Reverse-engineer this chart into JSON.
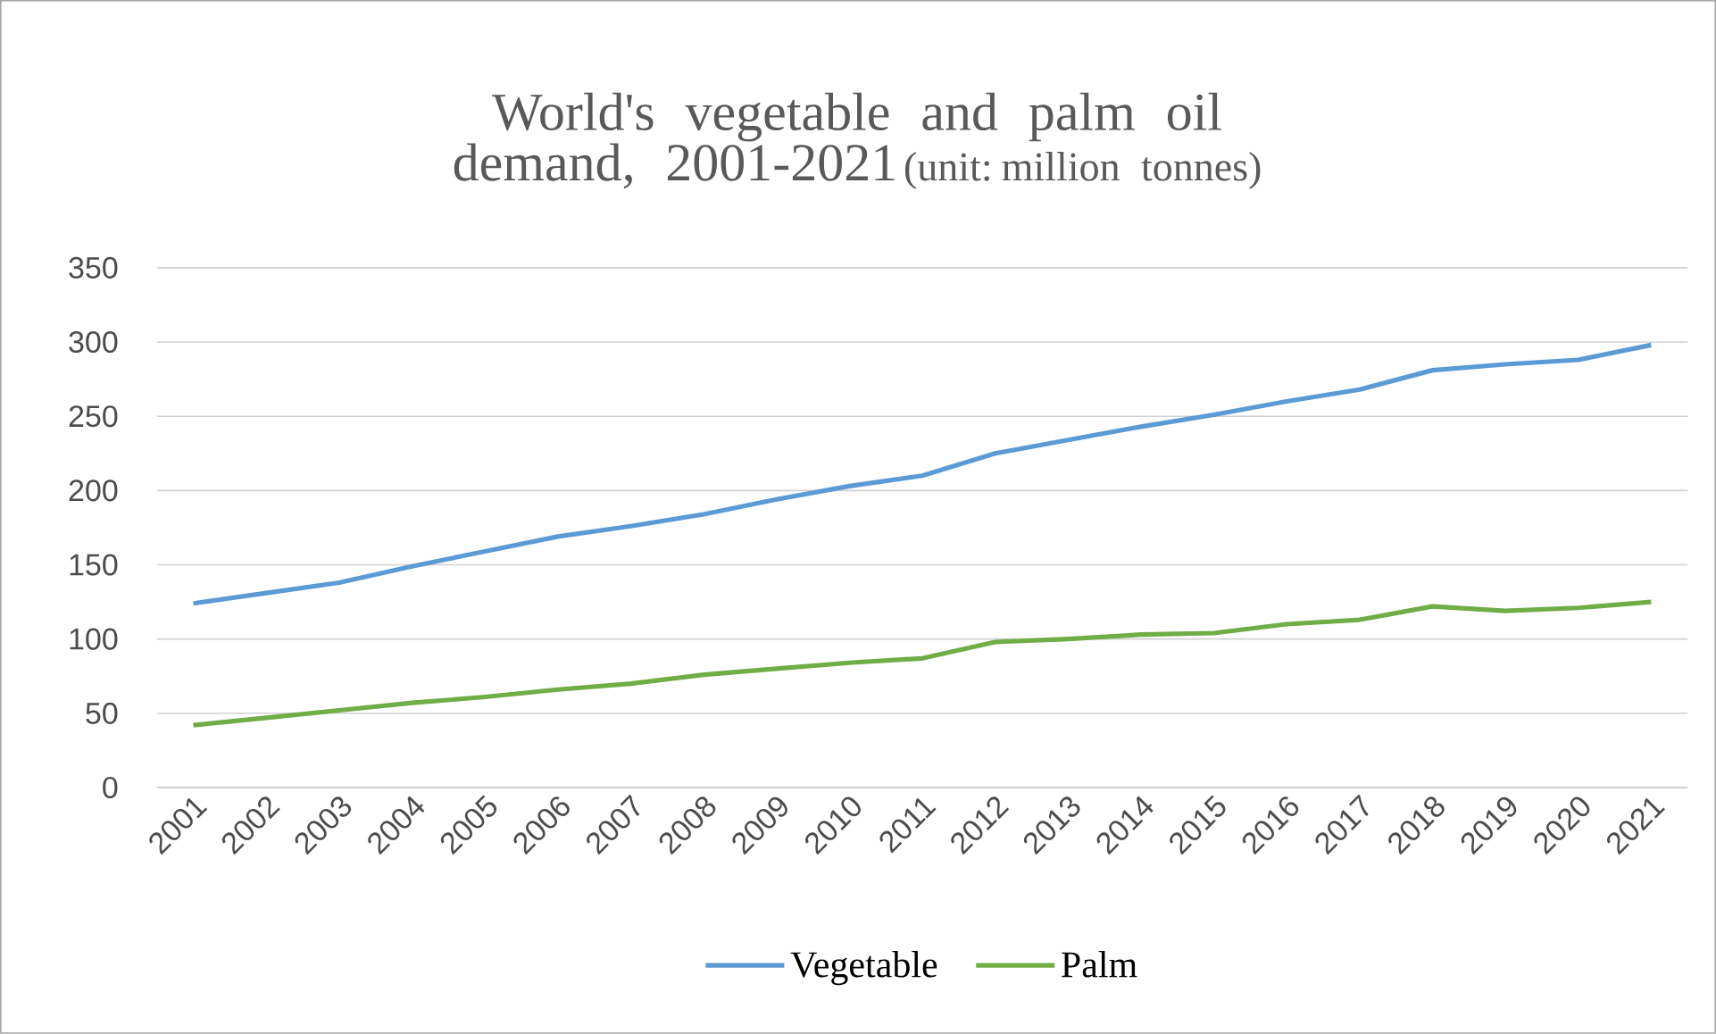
{
  "chart_data": {
    "type": "line",
    "title": "World's vegetable and palm oil demand, 2001-2021",
    "subtitle": "(unit: million tonnes)",
    "categories": [
      "2001",
      "2002",
      "2003",
      "2004",
      "2005",
      "2006",
      "2007",
      "2008",
      "2009",
      "2010",
      "2011",
      "2012",
      "2013",
      "2014",
      "2015",
      "2016",
      "2017",
      "2018",
      "2019",
      "2020",
      "2021"
    ],
    "series": [
      {
        "name": "Vegetable",
        "color": "#5b9bd5",
        "values": [
          124,
          131,
          138,
          149,
          159,
          169,
          176,
          184,
          194,
          203,
          210,
          225,
          234,
          243,
          251,
          260,
          268,
          281,
          285,
          288,
          298
        ]
      },
      {
        "name": "Palm",
        "color": "#70ad47",
        "values": [
          42,
          47,
          52,
          57,
          61,
          66,
          70,
          76,
          80,
          84,
          87,
          98,
          100,
          103,
          104,
          110,
          113,
          122,
          119,
          121,
          125
        ]
      }
    ],
    "ylim": [
      0,
      350
    ],
    "yticks": [
      0,
      50,
      100,
      150,
      200,
      250,
      300,
      350
    ],
    "grid": "y",
    "legend": "bottom",
    "marker": "none",
    "line_style": "solid"
  }
}
